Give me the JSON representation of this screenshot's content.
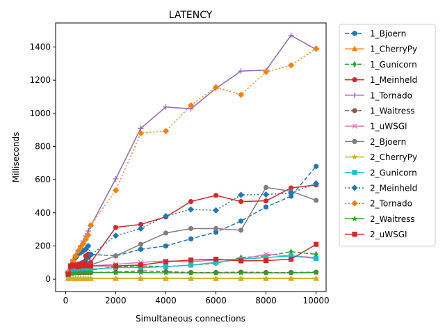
{
  "chart_data": {
    "type": "line",
    "title": "LATENCY",
    "xlabel": "Simultaneous connections",
    "ylabel": "Milliseconds",
    "xlim": [
      -400,
      10400
    ],
    "ylim": [
      -75,
      1545
    ],
    "xticks": [
      0,
      2000,
      4000,
      6000,
      8000,
      10000
    ],
    "yticks": [
      0,
      200,
      400,
      600,
      800,
      1000,
      1200,
      1400
    ],
    "grid": false,
    "legend_position": "outside-right",
    "series": [
      {
        "name": "1_Bjoern",
        "color": "#1f77b4",
        "dash": "6,3",
        "marker": "hexagon",
        "x": [
          100,
          200,
          300,
          400,
          500,
          600,
          700,
          800,
          900,
          1000,
          2000,
          3000,
          4000,
          5000,
          6000,
          7000,
          8000,
          9000,
          10000
        ],
        "y": [
          40,
          70,
          80,
          85,
          90,
          95,
          100,
          110,
          130,
          150,
          140,
          180,
          200,
          243,
          283,
          350,
          435,
          500,
          680
        ]
      },
      {
        "name": "1_CherryPy",
        "color": "#ff7f0e",
        "dash": "",
        "marker": "triangle-up",
        "x": [
          100,
          200,
          300,
          400,
          500,
          600,
          700,
          800,
          900,
          1000,
          2000,
          3000,
          4000,
          5000,
          6000,
          7000,
          8000,
          9000,
          10000
        ],
        "y": [
          3,
          3,
          3,
          3,
          3,
          3,
          3,
          3,
          3,
          3,
          3,
          3,
          3,
          3,
          3,
          3,
          3,
          3,
          3
        ]
      },
      {
        "name": "1_Gunicorn",
        "color": "#2ca02c",
        "dash": "6,3",
        "marker": "thin-diamond",
        "x": [
          100,
          200,
          300,
          400,
          500,
          600,
          700,
          800,
          900,
          1000,
          2000,
          3000,
          4000,
          5000,
          6000,
          7000,
          8000,
          9000,
          10000
        ],
        "y": [
          30,
          35,
          38,
          40,
          40,
          42,
          45,
          48,
          50,
          55,
          75,
          80,
          75,
          85,
          95,
          130,
          140,
          165,
          150
        ]
      },
      {
        "name": "1_Meinheld",
        "color": "#d62728",
        "dash": "",
        "marker": "circle",
        "x": [
          100,
          200,
          300,
          400,
          500,
          600,
          700,
          800,
          900,
          1000,
          2000,
          3000,
          4000,
          5000,
          6000,
          7000,
          8000,
          9000,
          10000
        ],
        "y": [
          40,
          70,
          80,
          85,
          88,
          90,
          100,
          140,
          150,
          100,
          312,
          330,
          375,
          468,
          505,
          468,
          472,
          550,
          568
        ]
      },
      {
        "name": "1_Tornado",
        "color": "#9467bd",
        "dash": "",
        "marker": "plus",
        "x": [
          100,
          200,
          300,
          400,
          500,
          600,
          700,
          800,
          900,
          1000,
          2000,
          3000,
          4000,
          5000,
          6000,
          7000,
          8000,
          9000,
          10000
        ],
        "y": [
          50,
          90,
          120,
          145,
          170,
          200,
          230,
          260,
          290,
          320,
          605,
          910,
          1038,
          1027,
          1150,
          1255,
          1260,
          1470,
          1385
        ]
      },
      {
        "name": "1_Waitress",
        "color": "#8c564b",
        "dash": "6,3",
        "marker": "circle",
        "x": [
          100,
          200,
          300,
          400,
          500,
          600,
          700,
          800,
          900,
          1000,
          2000,
          3000,
          4000,
          5000,
          6000,
          7000,
          8000,
          9000,
          10000
        ],
        "y": [
          35,
          38,
          40,
          40,
          40,
          40,
          40,
          40,
          40,
          40,
          42,
          50,
          45,
          40,
          40,
          42,
          40,
          40,
          42
        ]
      },
      {
        "name": "1_uWSGI",
        "color": "#e377c2",
        "dash": "",
        "marker": "x",
        "x": [
          100,
          200,
          300,
          400,
          500,
          600,
          700,
          800,
          900,
          1000,
          2000,
          3000,
          4000,
          5000,
          6000,
          7000,
          8000,
          9000,
          10000
        ],
        "y": [
          30,
          40,
          45,
          50,
          55,
          60,
          65,
          70,
          75,
          80,
          90,
          100,
          110,
          105,
          115,
          120,
          150,
          140,
          130
        ]
      },
      {
        "name": "2_Bjoern",
        "color": "#7f7f7f",
        "dash": "",
        "marker": "circle",
        "x": [
          100,
          200,
          300,
          400,
          500,
          600,
          700,
          800,
          900,
          1000,
          2000,
          3000,
          4000,
          5000,
          6000,
          7000,
          8000,
          9000,
          10000
        ],
        "y": [
          20,
          40,
          50,
          55,
          60,
          65,
          70,
          75,
          80,
          85,
          140,
          210,
          278,
          305,
          305,
          295,
          553,
          530,
          475
        ]
      },
      {
        "name": "2_CherryPy",
        "color": "#bcbd22",
        "dash": "",
        "marker": "star",
        "x": [
          100,
          200,
          300,
          400,
          500,
          600,
          700,
          800,
          900,
          1000,
          2000,
          3000,
          4000,
          5000,
          6000,
          7000,
          8000,
          9000,
          10000
        ],
        "y": [
          5,
          5,
          5,
          5,
          5,
          5,
          5,
          5,
          5,
          5,
          5,
          5,
          5,
          5,
          5,
          5,
          5,
          5,
          5
        ]
      },
      {
        "name": "2_Gunicorn",
        "color": "#17becf",
        "dash": "",
        "marker": "square",
        "x": [
          100,
          200,
          300,
          400,
          500,
          600,
          700,
          800,
          900,
          1000,
          2000,
          3000,
          4000,
          5000,
          6000,
          7000,
          8000,
          9000,
          10000
        ],
        "y": [
          30,
          35,
          40,
          45,
          50,
          50,
          55,
          55,
          60,
          60,
          70,
          70,
          75,
          85,
          100,
          120,
          130,
          140,
          125
        ]
      },
      {
        "name": "2_Meinheld",
        "color": "#1f77b4",
        "dash": "2,3",
        "marker": "diamond",
        "x": [
          100,
          200,
          300,
          400,
          500,
          600,
          700,
          800,
          900,
          1000,
          2000,
          3000,
          4000,
          5000,
          6000,
          7000,
          8000,
          9000,
          10000
        ],
        "y": [
          40,
          80,
          110,
          130,
          150,
          160,
          170,
          180,
          200,
          145,
          262,
          305,
          380,
          420,
          415,
          508,
          510,
          520,
          577
        ]
      },
      {
        "name": "2_Tornado",
        "color": "#ff7f0e",
        "dash": "2,3",
        "marker": "diamond",
        "x": [
          100,
          200,
          300,
          400,
          500,
          600,
          700,
          800,
          900,
          1000,
          2000,
          3000,
          4000,
          5000,
          6000,
          7000,
          8000,
          9000,
          10000
        ],
        "y": [
          40,
          80,
          110,
          140,
          170,
          195,
          215,
          240,
          265,
          325,
          535,
          880,
          893,
          1048,
          1158,
          1112,
          1250,
          1290,
          1390
        ]
      },
      {
        "name": "2_Waitress",
        "color": "#2ca02c",
        "dash": "",
        "marker": "star",
        "x": [
          100,
          200,
          300,
          400,
          500,
          600,
          700,
          800,
          900,
          1000,
          2000,
          3000,
          4000,
          5000,
          6000,
          7000,
          8000,
          9000,
          10000
        ],
        "y": [
          25,
          35,
          35,
          38,
          38,
          40,
          40,
          40,
          40,
          40,
          40,
          40,
          38,
          38,
          38,
          38,
          38,
          38,
          40
        ]
      },
      {
        "name": "2_uWSGI",
        "color": "#d62728",
        "dash": "",
        "marker": "square",
        "x": [
          100,
          200,
          300,
          400,
          500,
          600,
          700,
          800,
          900,
          1000,
          2000,
          3000,
          4000,
          5000,
          6000,
          7000,
          8000,
          9000,
          10000
        ],
        "y": [
          30,
          80,
          85,
          80,
          75,
          80,
          80,
          85,
          80,
          80,
          80,
          85,
          105,
          115,
          120,
          110,
          112,
          120,
          210
        ]
      }
    ]
  }
}
